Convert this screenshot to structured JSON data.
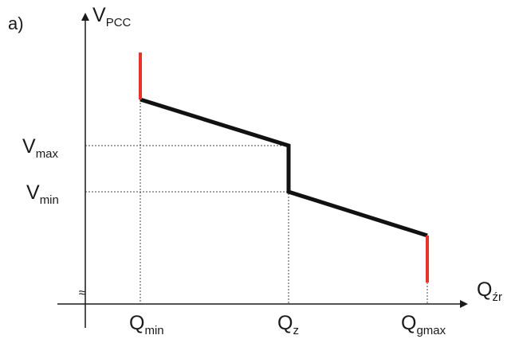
{
  "panel_label": "a)",
  "axes": {
    "y": {
      "symbol": "V",
      "subscript": "PCC"
    },
    "x": {
      "symbol": "Q",
      "subscript": "źr"
    },
    "break_mark": "≈"
  },
  "y_levels": [
    {
      "symbol": "V",
      "subscript": "max"
    },
    {
      "symbol": "V",
      "subscript": "min"
    }
  ],
  "x_marks": [
    {
      "symbol": "Q",
      "subscript": "min"
    },
    {
      "symbol": "Q",
      "subscript": "z"
    },
    {
      "symbol": "Q",
      "subscript": "gmax"
    }
  ],
  "colors": {
    "axis": "#1a1a1a",
    "curve": "#111111",
    "limit_segments": "#e8322b",
    "guides": "#444444"
  }
}
